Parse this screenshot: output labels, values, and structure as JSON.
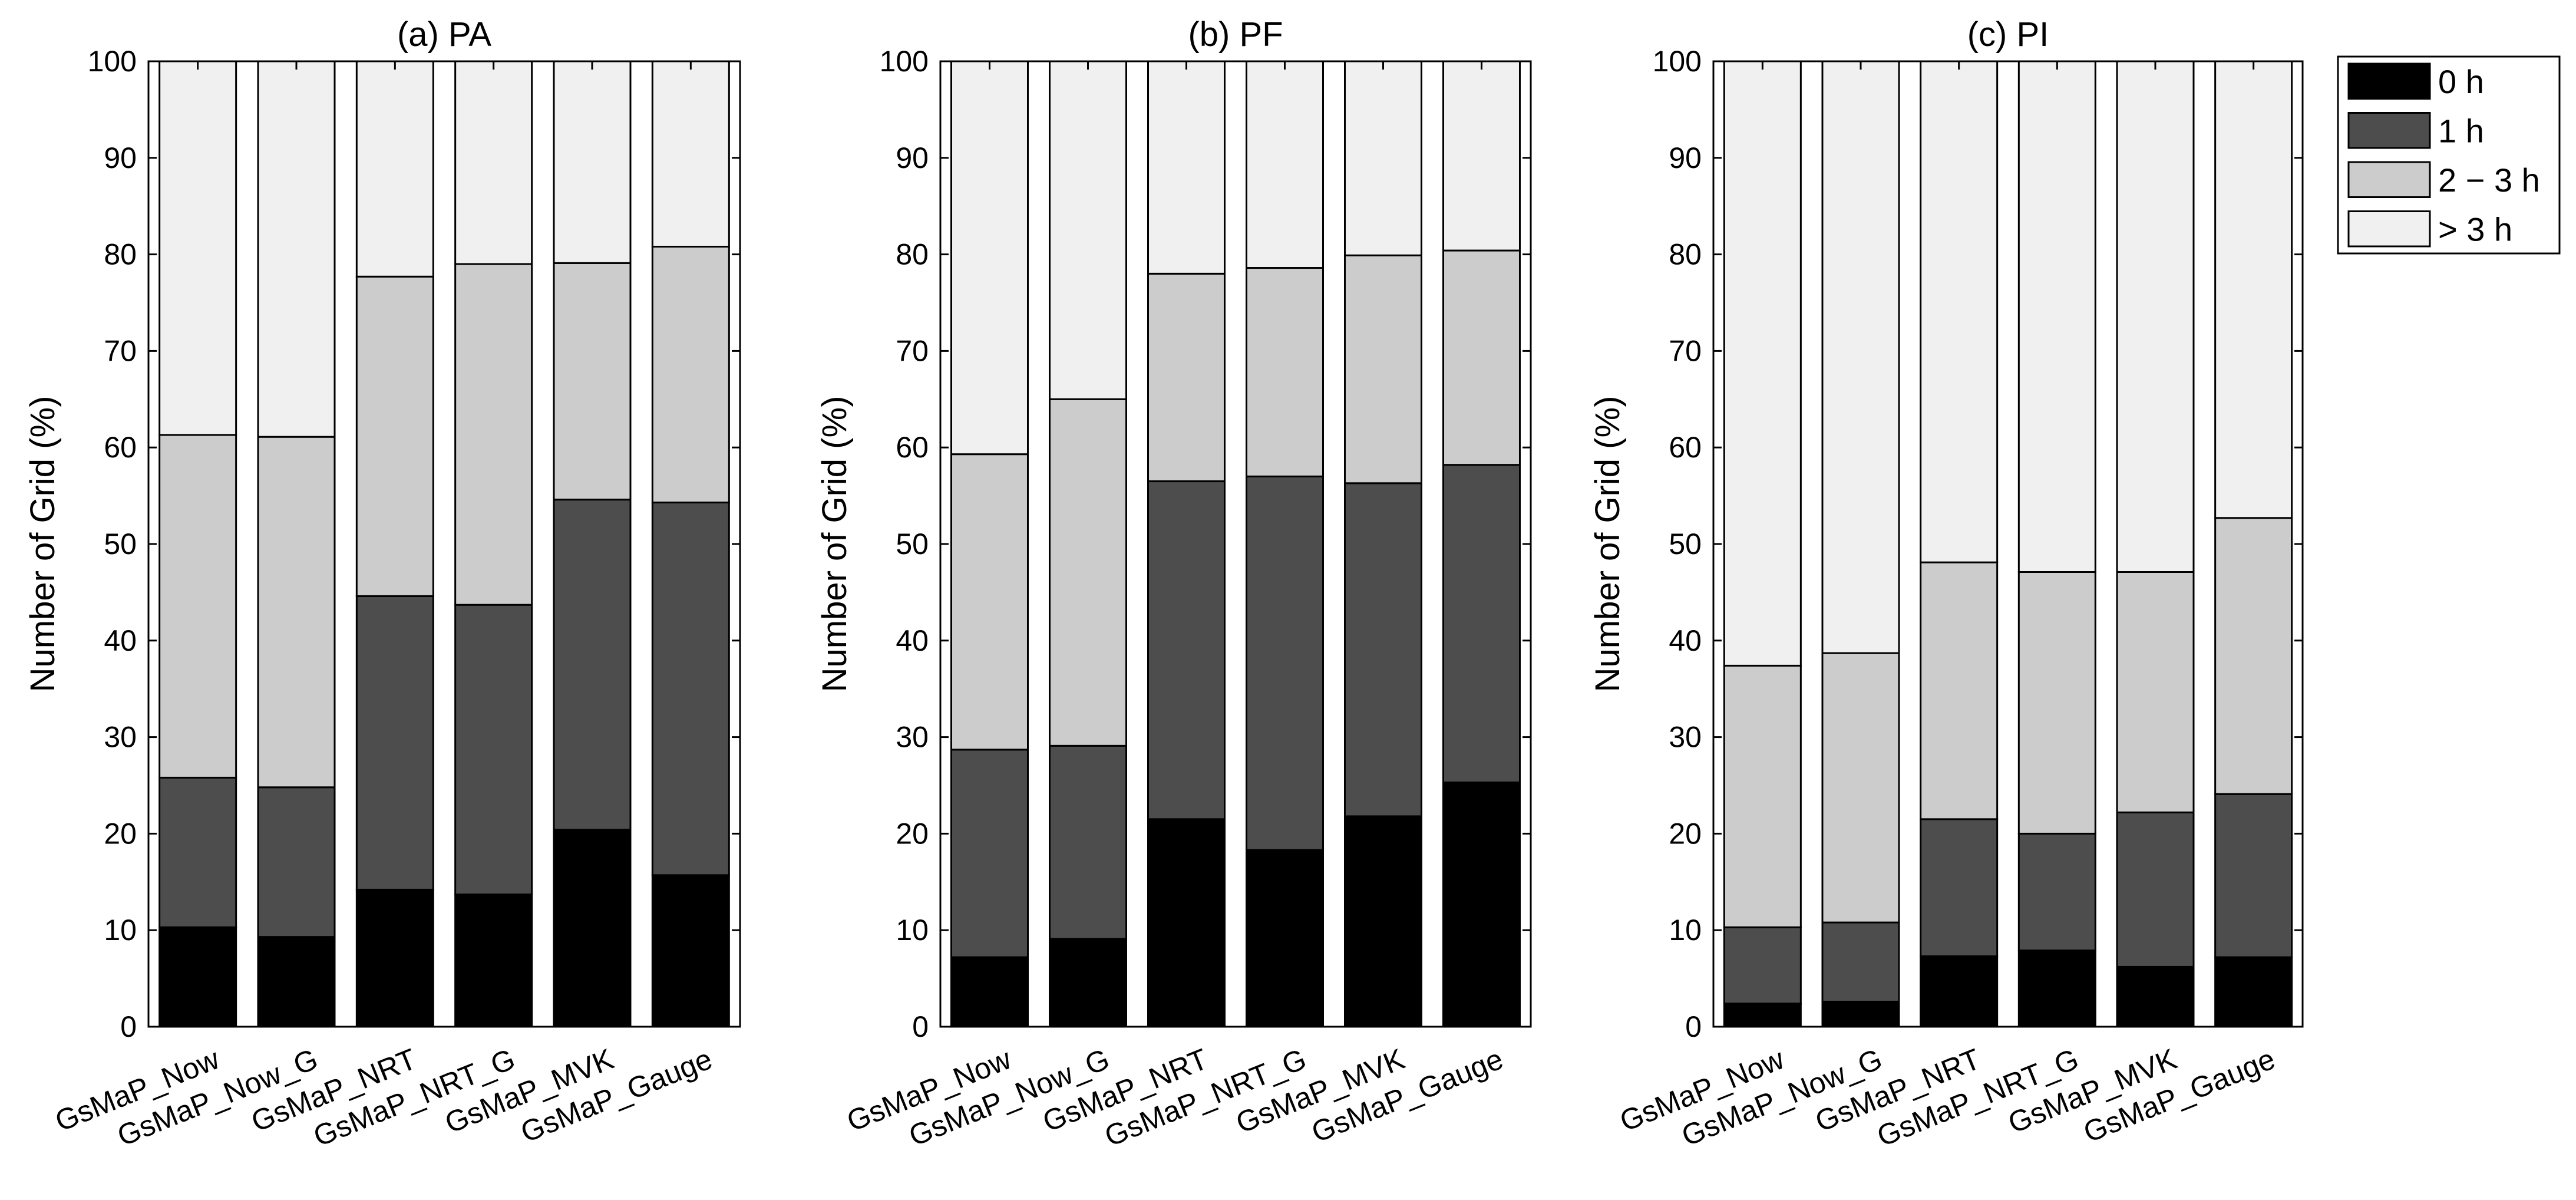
{
  "figure": {
    "legend_position": "top-right"
  },
  "chart_data": [
    {
      "type": "bar",
      "stacked": true,
      "title": "(a) PA",
      "xlabel": "",
      "ylabel": "Number of Grid (%)",
      "ylim": [
        0,
        100
      ],
      "yticks": [
        0,
        10,
        20,
        30,
        40,
        50,
        60,
        70,
        80,
        90,
        100
      ],
      "categories": [
        "GsMaP_Now",
        "GsMaP_Now_G",
        "GsMaP_NRT",
        "GsMaP_NRT_G",
        "GsMaP_MVK",
        "GsMaP_Gauge"
      ],
      "series": [
        {
          "name": "0 h",
          "color": "#000000",
          "values": [
            10.3,
            9.3,
            14.2,
            13.7,
            20.4,
            15.7
          ]
        },
        {
          "name": "1 h",
          "color": "#4d4d4d",
          "values": [
            15.5,
            15.5,
            30.4,
            30.0,
            34.2,
            38.6
          ]
        },
        {
          "name": "2 − 3 h",
          "color": "#cccccc",
          "values": [
            35.5,
            36.3,
            33.1,
            35.3,
            24.5,
            26.5
          ]
        },
        {
          "name": "> 3 h",
          "color": "#f0f0f0",
          "values": [
            38.7,
            38.9,
            22.3,
            21.0,
            20.9,
            19.2
          ]
        }
      ]
    },
    {
      "type": "bar",
      "stacked": true,
      "title": "(b) PF",
      "xlabel": "",
      "ylabel": "Number of Grid (%)",
      "ylim": [
        0,
        100
      ],
      "yticks": [
        0,
        10,
        20,
        30,
        40,
        50,
        60,
        70,
        80,
        90,
        100
      ],
      "categories": [
        "GsMaP_Now",
        "GsMaP_Now_G",
        "GsMaP_NRT",
        "GsMaP_NRT_G",
        "GsMaP_MVK",
        "GsMaP_Gauge"
      ],
      "series": [
        {
          "name": "0 h",
          "color": "#000000",
          "values": [
            7.2,
            9.1,
            21.5,
            18.3,
            21.8,
            25.3
          ]
        },
        {
          "name": "1 h",
          "color": "#4d4d4d",
          "values": [
            21.5,
            20.0,
            35.0,
            38.7,
            34.5,
            32.9
          ]
        },
        {
          "name": "2 − 3 h",
          "color": "#cccccc",
          "values": [
            30.6,
            35.9,
            21.5,
            21.6,
            23.6,
            22.2
          ]
        },
        {
          "name": "> 3 h",
          "color": "#f0f0f0",
          "values": [
            40.7,
            35.0,
            22.0,
            21.4,
            20.1,
            19.6
          ]
        }
      ]
    },
    {
      "type": "bar",
      "stacked": true,
      "title": "(c) PI",
      "xlabel": "",
      "ylabel": "Number of Grid (%)",
      "ylim": [
        0,
        100
      ],
      "yticks": [
        0,
        10,
        20,
        30,
        40,
        50,
        60,
        70,
        80,
        90,
        100
      ],
      "categories": [
        "GsMaP_Now",
        "GsMaP_Now_G",
        "GsMaP_NRT",
        "GsMaP_NRT_G",
        "GsMaP_MVK",
        "GsMaP_Gauge"
      ],
      "series": [
        {
          "name": "0 h",
          "color": "#000000",
          "values": [
            2.4,
            2.6,
            7.3,
            7.9,
            6.2,
            7.2
          ]
        },
        {
          "name": "1 h",
          "color": "#4d4d4d",
          "values": [
            7.9,
            8.2,
            14.2,
            12.1,
            16.0,
            16.9
          ]
        },
        {
          "name": "2 − 3 h",
          "color": "#cccccc",
          "values": [
            27.1,
            27.9,
            26.6,
            27.1,
            24.9,
            28.6
          ]
        },
        {
          "name": "> 3 h",
          "color": "#f0f0f0",
          "values": [
            62.6,
            61.3,
            51.9,
            52.9,
            52.9,
            47.3
          ]
        }
      ]
    }
  ]
}
